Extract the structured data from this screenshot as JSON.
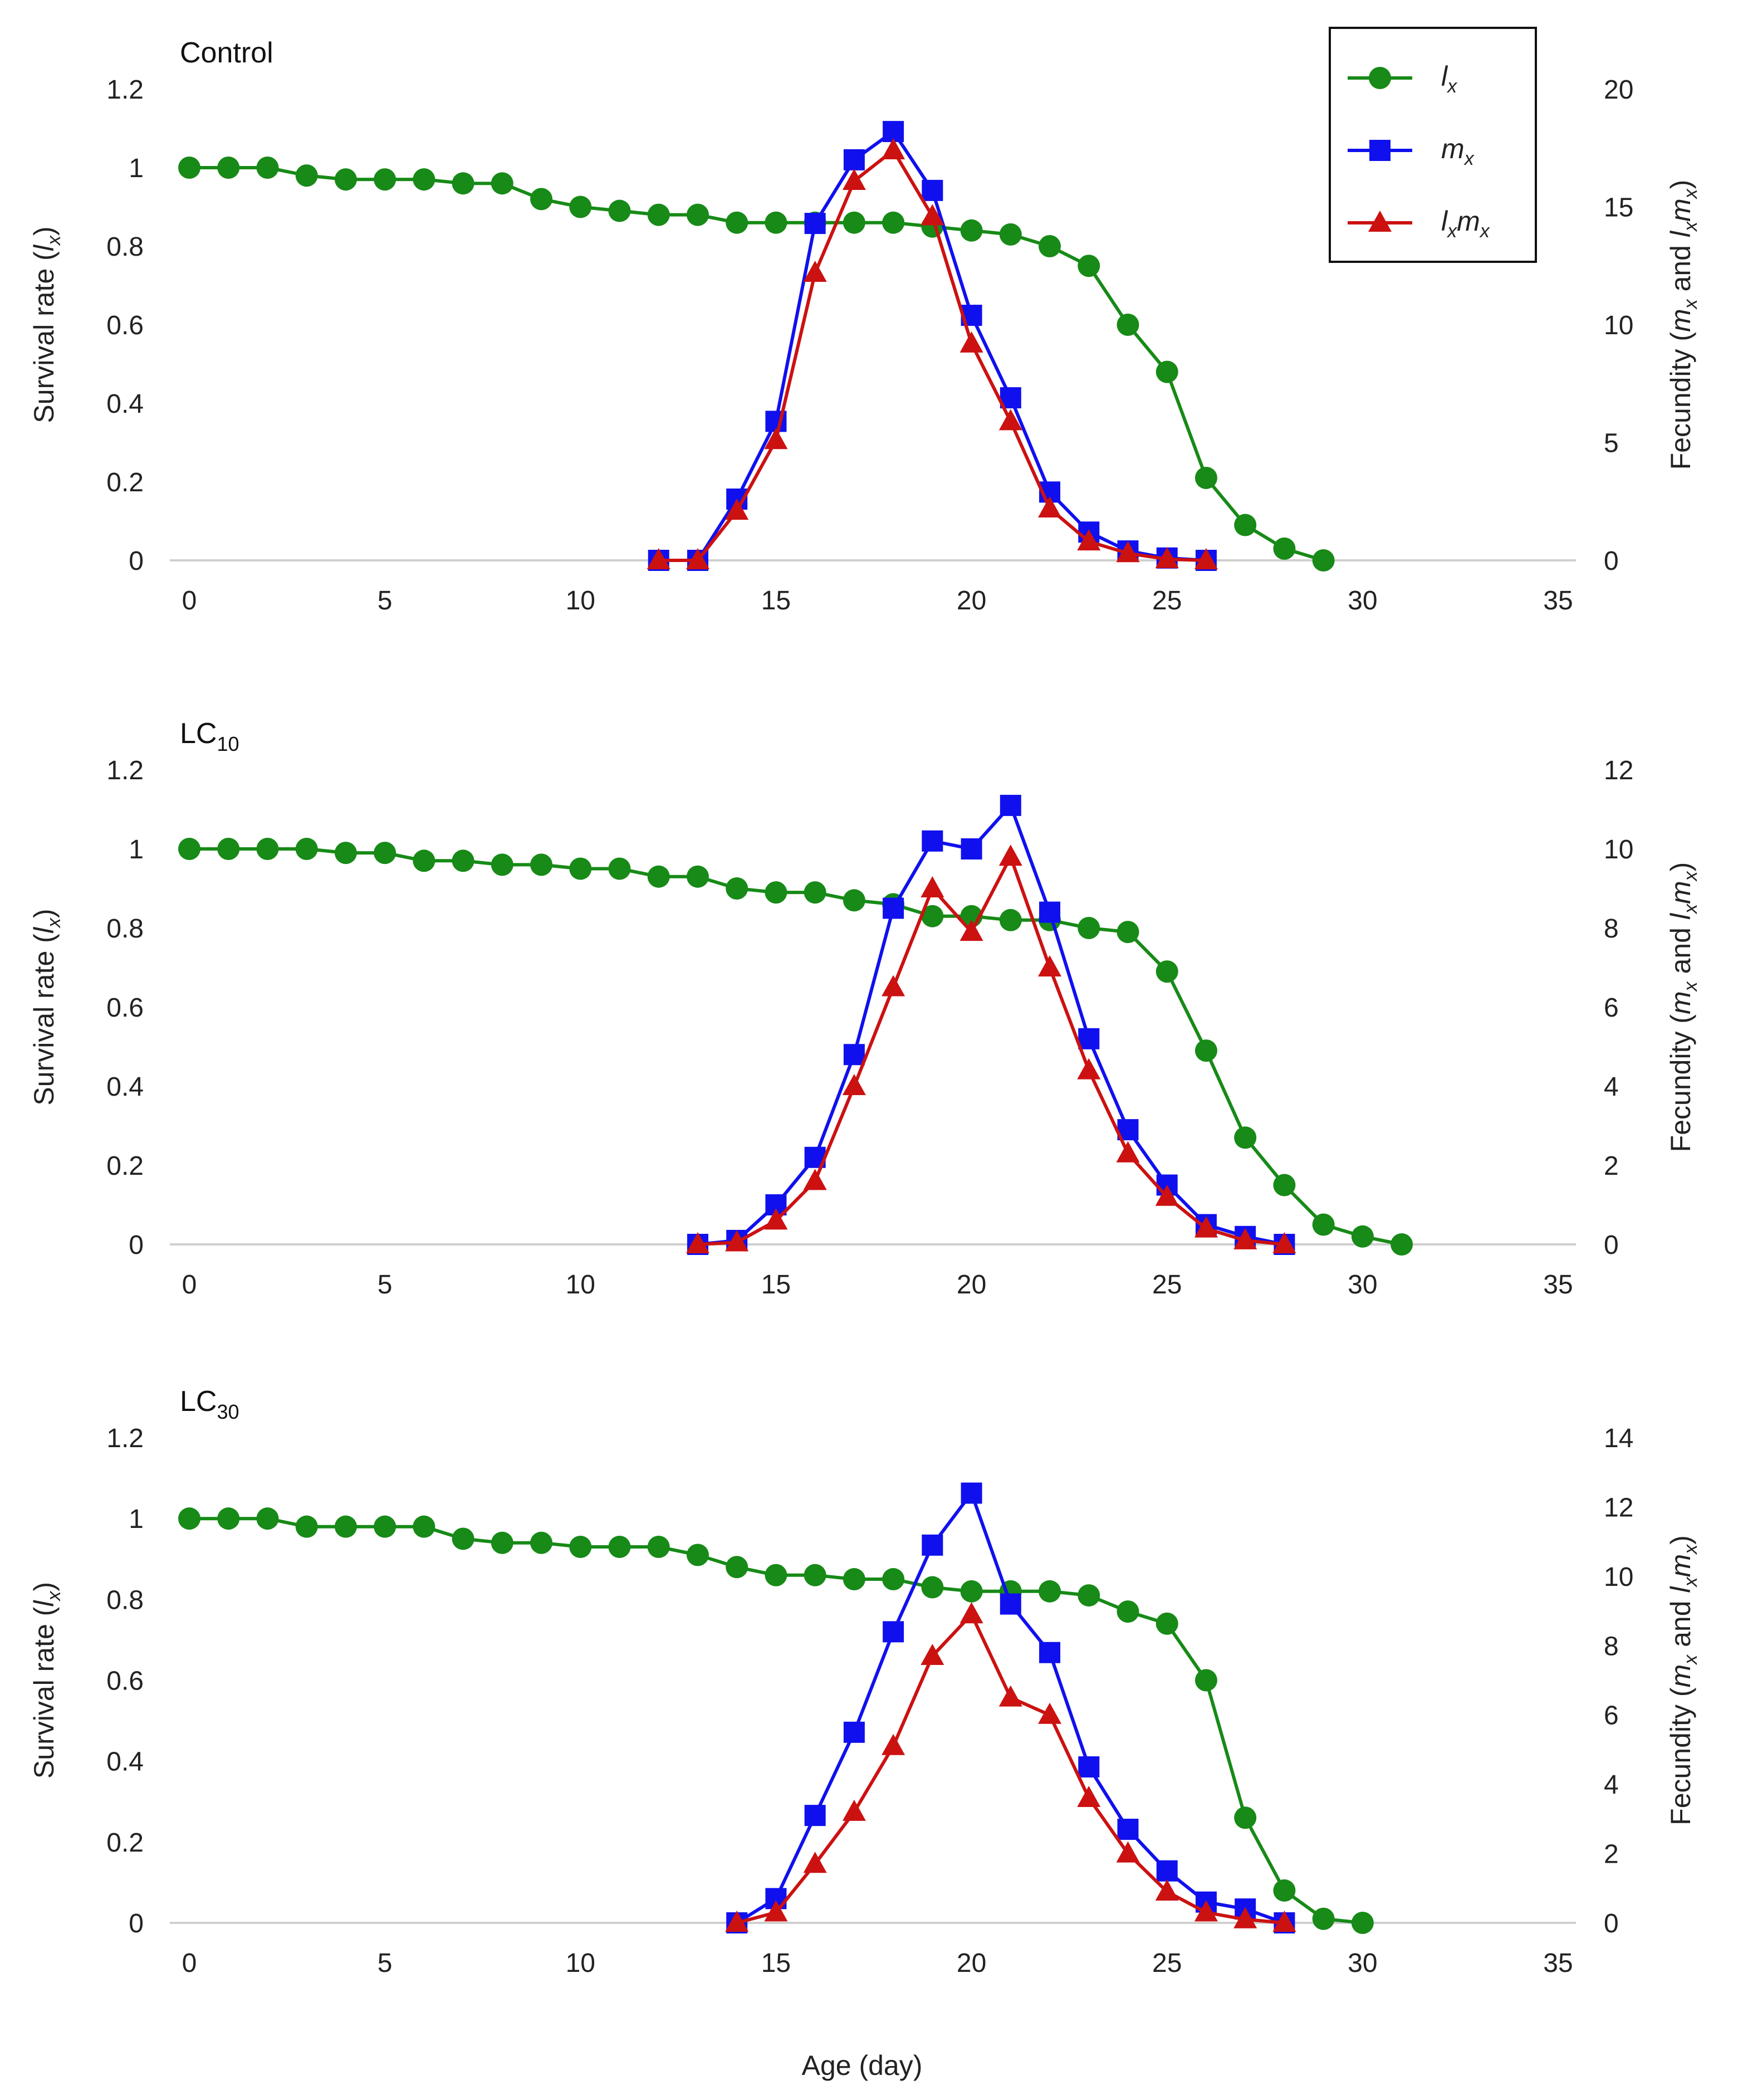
{
  "chart_data": {
    "type": "line",
    "xlabel": "Age (day)",
    "colors": {
      "lx": "#178a17",
      "mx": "#1010ee",
      "lxmx": "#cc1111",
      "axis": "#cfcfcf"
    },
    "legend": {
      "placement": "top-right",
      "entries": [
        {
          "key": "lx",
          "main": "l",
          "sub": "x",
          "marker": "circle"
        },
        {
          "key": "mx",
          "main": "m",
          "sub": "x",
          "marker": "square"
        },
        {
          "key": "lxmx",
          "main": "l",
          "sub": "x",
          "main2": "m",
          "sub2": "x",
          "marker": "triangle"
        }
      ]
    },
    "left_axis_title": {
      "prefix": "Survival rate (",
      "var": "l",
      "sub": "x",
      "suffix": ")"
    },
    "right_axis_title": {
      "prefix": "Fecundity (",
      "v1": "m",
      "s1": "x",
      "mid": " and ",
      "v2": "l",
      "s2": "x",
      "v3": "m",
      "s3": "x",
      "suffix": ")"
    },
    "panels": [
      {
        "title": "Control",
        "title_sub": "",
        "xlim": [
          0,
          35
        ],
        "x_ticks": [
          0,
          5,
          10,
          15,
          20,
          25,
          30,
          35
        ],
        "y_left": {
          "lim": [
            0,
            1.2
          ],
          "ticks": [
            0,
            0.2,
            0.4,
            0.6,
            0.8,
            1,
            1.2
          ]
        },
        "y_right": {
          "lim": [
            0,
            20
          ],
          "ticks": [
            0,
            5,
            10,
            15,
            20
          ]
        },
        "series": [
          {
            "key": "lx",
            "name": "lx",
            "axis": "left",
            "x": [
              0,
              1,
              2,
              3,
              4,
              5,
              6,
              7,
              8,
              9,
              10,
              11,
              12,
              13,
              14,
              15,
              16,
              17,
              18,
              19,
              20,
              21,
              22,
              23,
              24,
              25,
              26,
              27,
              28,
              29
            ],
            "y": [
              1,
              1,
              1,
              0.98,
              0.97,
              0.97,
              0.97,
              0.96,
              0.96,
              0.92,
              0.9,
              0.89,
              0.88,
              0.88,
              0.86,
              0.86,
              0.86,
              0.86,
              0.86,
              0.85,
              0.84,
              0.83,
              0.8,
              0.75,
              0.6,
              0.48,
              0.21,
              0.09,
              0.03,
              0
            ]
          },
          {
            "key": "mx",
            "name": "mx",
            "axis": "right",
            "x": [
              12,
              13,
              14,
              15,
              16,
              17,
              18,
              19,
              20,
              21,
              22,
              23,
              24,
              25,
              26
            ],
            "y": [
              0,
              0,
              2.6,
              5.9,
              14.3,
              17,
              18.2,
              15.7,
              10.4,
              6.9,
              2.9,
              1.2,
              0.4,
              0.1,
              0
            ]
          },
          {
            "key": "lxmx",
            "name": "lxmx",
            "axis": "right",
            "x": [
              12,
              13,
              14,
              15,
              16,
              17,
              18,
              19,
              20,
              21,
              22,
              23,
              24,
              25,
              26
            ],
            "y": [
              0,
              0,
              2.1,
              5.1,
              12.2,
              16.1,
              17.4,
              14.6,
              9.2,
              5.9,
              2.2,
              0.8,
              0.3,
              0.05,
              0
            ]
          }
        ]
      },
      {
        "title": "LC",
        "title_sub": "10",
        "xlim": [
          0,
          35
        ],
        "x_ticks": [
          0,
          5,
          10,
          15,
          20,
          25,
          30,
          35
        ],
        "y_left": {
          "lim": [
            0,
            1.2
          ],
          "ticks": [
            0,
            0.2,
            0.4,
            0.6,
            0.8,
            1,
            1.2
          ]
        },
        "y_right": {
          "lim": [
            0,
            12
          ],
          "ticks": [
            0,
            2,
            4,
            6,
            8,
            10,
            12
          ]
        },
        "series": [
          {
            "key": "lx",
            "name": "lx",
            "axis": "left",
            "x": [
              0,
              1,
              2,
              3,
              4,
              5,
              6,
              7,
              8,
              9,
              10,
              11,
              12,
              13,
              14,
              15,
              16,
              17,
              18,
              19,
              20,
              21,
              22,
              23,
              24,
              25,
              26,
              27,
              28,
              29,
              30,
              31
            ],
            "y": [
              1,
              1,
              1,
              1,
              0.99,
              0.99,
              0.97,
              0.97,
              0.96,
              0.96,
              0.95,
              0.95,
              0.93,
              0.93,
              0.9,
              0.89,
              0.89,
              0.87,
              0.86,
              0.83,
              0.83,
              0.82,
              0.82,
              0.8,
              0.79,
              0.69,
              0.49,
              0.27,
              0.15,
              0.05,
              0.02,
              0
            ]
          },
          {
            "key": "mx",
            "name": "mx",
            "axis": "right",
            "x": [
              13,
              14,
              15,
              16,
              17,
              18,
              19,
              20,
              21,
              22,
              23,
              24,
              25,
              26,
              27,
              28
            ],
            "y": [
              0,
              0.1,
              1,
              2.2,
              4.8,
              8.5,
              10.2,
              10,
              11.1,
              8.4,
              5.2,
              2.9,
              1.5,
              0.5,
              0.2,
              0
            ]
          },
          {
            "key": "lxmx",
            "name": "lxmx",
            "axis": "right",
            "x": [
              13,
              14,
              15,
              16,
              17,
              18,
              19,
              20,
              21,
              22,
              23,
              24,
              25,
              26,
              27,
              28
            ],
            "y": [
              0,
              0.05,
              0.6,
              1.6,
              4,
              6.5,
              9,
              7.9,
              9.8,
              7,
              4.4,
              2.3,
              1.2,
              0.4,
              0.1,
              0
            ]
          }
        ]
      },
      {
        "title": "LC",
        "title_sub": "30",
        "xlim": [
          0,
          35
        ],
        "x_ticks": [
          0,
          5,
          10,
          15,
          20,
          25,
          30,
          35
        ],
        "y_left": {
          "lim": [
            0,
            1.2
          ],
          "ticks": [
            0,
            0.2,
            0.4,
            0.6,
            0.8,
            1,
            1.2
          ]
        },
        "y_right": {
          "lim": [
            0,
            14
          ],
          "ticks": [
            0,
            2,
            4,
            6,
            8,
            10,
            12,
            14
          ]
        },
        "series": [
          {
            "key": "lx",
            "name": "lx",
            "axis": "left",
            "x": [
              0,
              1,
              2,
              3,
              4,
              5,
              6,
              7,
              8,
              9,
              10,
              11,
              12,
              13,
              14,
              15,
              16,
              17,
              18,
              19,
              20,
              21,
              22,
              23,
              24,
              25,
              26,
              27,
              28,
              29,
              30
            ],
            "y": [
              1,
              1,
              1,
              0.98,
              0.98,
              0.98,
              0.98,
              0.95,
              0.94,
              0.94,
              0.93,
              0.93,
              0.93,
              0.91,
              0.88,
              0.86,
              0.86,
              0.85,
              0.85,
              0.83,
              0.82,
              0.82,
              0.82,
              0.81,
              0.77,
              0.74,
              0.6,
              0.26,
              0.08,
              0.01,
              0
            ]
          },
          {
            "key": "mx",
            "name": "mx",
            "axis": "right",
            "x": [
              14,
              15,
              16,
              17,
              18,
              19,
              20,
              21,
              22,
              23,
              24,
              25,
              26,
              27,
              28
            ],
            "y": [
              0,
              0.7,
              3.1,
              5.5,
              8.4,
              10.9,
              12.4,
              9.2,
              7.8,
              4.5,
              2.7,
              1.5,
              0.6,
              0.4,
              0
            ]
          },
          {
            "key": "lxmx",
            "name": "lxmx",
            "axis": "right",
            "x": [
              14,
              15,
              16,
              17,
              18,
              19,
              20,
              21,
              22,
              23,
              24,
              25,
              26,
              27,
              28
            ],
            "y": [
              0,
              0.3,
              1.7,
              3.2,
              5.1,
              7.7,
              8.9,
              6.5,
              6,
              3.6,
              2,
              0.9,
              0.3,
              0.1,
              0
            ]
          }
        ]
      }
    ]
  }
}
